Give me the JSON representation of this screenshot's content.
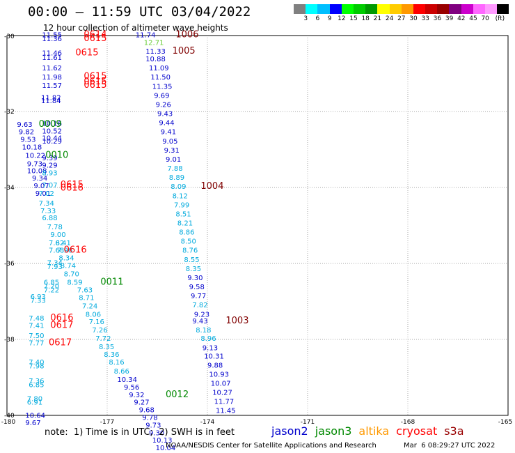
{
  "header": {
    "title": "00:00 — 11:59 UTC 03/04/2022",
    "subtitle": "12 hour collection of altimeter wave heights"
  },
  "color_legend": {
    "colors": [
      "#808080",
      "#00ffff",
      "#00bfff",
      "#0000ff",
      "#00ff00",
      "#00cc00",
      "#009900",
      "#ffff00",
      "#ffcc00",
      "#ff9900",
      "#ff0000",
      "#cc0000",
      "#990000",
      "#800080",
      "#cc00cc",
      "#ff66ff",
      "#ff99ff",
      "#000000"
    ],
    "labels": [
      "3",
      "6",
      "9",
      "12",
      "15",
      "18",
      "21",
      "24",
      "27",
      "30",
      "33",
      "36",
      "39",
      "42",
      "45",
      "70",
      "(ft)"
    ]
  },
  "footer": {
    "note": "note:  1) Time is in UTC;  2) SWH is in feet",
    "credit": "NOAA/NESDIS Center for Satellite Applications and Research",
    "credit_date": "Mar  6 08:29:27 UTC 2022"
  },
  "satellites": [
    {
      "name": "jason2",
      "color": "#0000cc"
    },
    {
      "name": "jason3",
      "color": "#008800"
    },
    {
      "name": "altika",
      "color": "#ff9900"
    },
    {
      "name": "cryosat",
      "color": "#ff0000"
    },
    {
      "name": "s3a",
      "color": "#990000"
    }
  ],
  "chart_data": {
    "type": "scatter",
    "title": "12 hour collection of altimeter wave heights",
    "x_ticks": [
      "-180",
      "-177",
      "-174",
      "-171",
      "-168",
      "-165"
    ],
    "y_ticks": [
      "-30",
      "-32",
      "-34",
      "-36",
      "-38",
      "-40"
    ],
    "xlim": [
      -180,
      -165
    ],
    "ylim": [
      -40,
      -30
    ],
    "grid": true,
    "points": [
      {
        "lon": -178.95,
        "lat": -30.05,
        "v": "11.55",
        "c": "#0000cc"
      },
      {
        "lon": -178.95,
        "lat": -30.15,
        "v": "11.36",
        "c": "#0000cc"
      },
      {
        "lon": -178.95,
        "lat": -30.52,
        "v": "11.46",
        "c": "#0000cc"
      },
      {
        "lon": -178.95,
        "lat": -30.64,
        "v": "11.61",
        "c": "#0000cc"
      },
      {
        "lon": -178.95,
        "lat": -30.92,
        "v": "11.62",
        "c": "#0000cc"
      },
      {
        "lon": -178.95,
        "lat": -31.16,
        "v": "11.98",
        "c": "#0000cc"
      },
      {
        "lon": -178.95,
        "lat": -31.38,
        "v": "11.57",
        "c": "#0000cc"
      },
      {
        "lon": -178.98,
        "lat": -31.7,
        "v": "11.82",
        "c": "#0000cc"
      },
      {
        "lon": -178.98,
        "lat": -31.78,
        "v": "11.84",
        "c": "#0000cc"
      },
      {
        "lon": -176.15,
        "lat": -30.05,
        "v": "11.74",
        "c": "#0000cc"
      },
      {
        "lon": -175.9,
        "lat": -30.25,
        "v": "12.71",
        "c": "#66cc33"
      },
      {
        "lon": -175.85,
        "lat": -30.48,
        "v": "11.33",
        "c": "#0000cc"
      },
      {
        "lon": -175.85,
        "lat": -30.68,
        "v": "10.88",
        "c": "#0000cc"
      },
      {
        "lon": -175.75,
        "lat": -30.92,
        "v": "11.09",
        "c": "#0000cc"
      },
      {
        "lon": -175.7,
        "lat": -31.16,
        "v": "11.50",
        "c": "#0000cc"
      },
      {
        "lon": -175.65,
        "lat": -31.4,
        "v": "11.35",
        "c": "#0000cc"
      },
      {
        "lon": -175.6,
        "lat": -31.64,
        "v": "9.69",
        "c": "#0000cc"
      },
      {
        "lon": -175.55,
        "lat": -31.88,
        "v": "9.26",
        "c": "#0000cc"
      },
      {
        "lon": -175.5,
        "lat": -32.12,
        "v": "9.43",
        "c": "#0000cc"
      },
      {
        "lon": -175.45,
        "lat": -32.36,
        "v": "9.44",
        "c": "#0000cc"
      },
      {
        "lon": -175.4,
        "lat": -32.6,
        "v": "9.41",
        "c": "#0000cc"
      },
      {
        "lon": -175.35,
        "lat": -32.84,
        "v": "9.05",
        "c": "#0000cc"
      },
      {
        "lon": -175.3,
        "lat": -33.08,
        "v": "9.31",
        "c": "#0000cc"
      },
      {
        "lon": -175.25,
        "lat": -33.32,
        "v": "9.01",
        "c": "#0000cc"
      },
      {
        "lon": -175.2,
        "lat": -33.56,
        "v": "7.88",
        "c": "#00aadd"
      },
      {
        "lon": -175.15,
        "lat": -33.8,
        "v": "8.89",
        "c": "#00aadd"
      },
      {
        "lon": -175.1,
        "lat": -34.04,
        "v": "8.09",
        "c": "#00aadd"
      },
      {
        "lon": -175.05,
        "lat": -34.28,
        "v": "8.12",
        "c": "#00aadd"
      },
      {
        "lon": -175.0,
        "lat": -34.52,
        "v": "7.99",
        "c": "#00aadd"
      },
      {
        "lon": -174.95,
        "lat": -34.76,
        "v": "8.51",
        "c": "#00aadd"
      },
      {
        "lon": -174.9,
        "lat": -35.0,
        "v": "8.21",
        "c": "#00aadd"
      },
      {
        "lon": -174.85,
        "lat": -35.24,
        "v": "8.86",
        "c": "#00aadd"
      },
      {
        "lon": -174.8,
        "lat": -35.48,
        "v": "8.50",
        "c": "#00aadd"
      },
      {
        "lon": -174.75,
        "lat": -35.72,
        "v": "8.76",
        "c": "#00aadd"
      },
      {
        "lon": -174.7,
        "lat": -35.96,
        "v": "8.55",
        "c": "#00aadd"
      },
      {
        "lon": -174.65,
        "lat": -36.2,
        "v": "8.35",
        "c": "#00aadd"
      },
      {
        "lon": -174.6,
        "lat": -36.44,
        "v": "9.30",
        "c": "#0000cc"
      },
      {
        "lon": -174.55,
        "lat": -36.68,
        "v": "9.58",
        "c": "#0000cc"
      },
      {
        "lon": -174.5,
        "lat": -36.92,
        "v": "9.77",
        "c": "#0000cc"
      },
      {
        "lon": -174.45,
        "lat": -37.16,
        "v": "7.82",
        "c": "#00aadd"
      },
      {
        "lon": -174.4,
        "lat": -37.4,
        "v": "9.23",
        "c": "#0000cc"
      },
      {
        "lon": -174.45,
        "lat": -37.58,
        "v": "9.43",
        "c": "#0000cc"
      },
      {
        "lon": -174.35,
        "lat": -37.82,
        "v": "8.18",
        "c": "#00aadd"
      },
      {
        "lon": -174.2,
        "lat": -38.04,
        "v": "8.96",
        "c": "#00aadd"
      },
      {
        "lon": -174.15,
        "lat": -38.28,
        "v": "9.13",
        "c": "#0000cc"
      },
      {
        "lon": -174.1,
        "lat": -38.5,
        "v": "10.31",
        "c": "#0000cc"
      },
      {
        "lon": -174.0,
        "lat": -38.74,
        "v": "9.88",
        "c": "#0000cc"
      },
      {
        "lon": -173.95,
        "lat": -38.98,
        "v": "10.93",
        "c": "#0000cc"
      },
      {
        "lon": -173.9,
        "lat": -39.22,
        "v": "10.07",
        "c": "#0000cc"
      },
      {
        "lon": -173.85,
        "lat": -39.46,
        "v": "10.27",
        "c": "#0000cc"
      },
      {
        "lon": -173.8,
        "lat": -39.7,
        "v": "11.77",
        "c": "#0000cc"
      },
      {
        "lon": -173.75,
        "lat": -39.94,
        "v": "11.45",
        "c": "#0000cc"
      },
      {
        "lon": -179.7,
        "lat": -32.4,
        "v": "9.63",
        "c": "#0000cc"
      },
      {
        "lon": -179.65,
        "lat": -32.6,
        "v": "9.82",
        "c": "#0000cc"
      },
      {
        "lon": -179.6,
        "lat": -32.8,
        "v": "9.53",
        "c": "#0000cc"
      },
      {
        "lon": -179.55,
        "lat": -33.0,
        "v": "10.18",
        "c": "#0000cc"
      },
      {
        "lon": -179.45,
        "lat": -33.22,
        "v": "10.22",
        "c": "#0000cc"
      },
      {
        "lon": -179.4,
        "lat": -33.44,
        "v": "9.73",
        "c": "#0000cc"
      },
      {
        "lon": -179.4,
        "lat": -33.62,
        "v": "10.08",
        "c": "#0000cc"
      },
      {
        "lon": -179.25,
        "lat": -33.82,
        "v": "9.34",
        "c": "#0000cc"
      },
      {
        "lon": -179.2,
        "lat": -34.02,
        "v": "9.07",
        "c": "#0000cc"
      },
      {
        "lon": -179.15,
        "lat": -34.22,
        "v": "9.01",
        "c": "#0000cc"
      },
      {
        "lon": -178.95,
        "lat": -32.38,
        "v": "10.16",
        "c": "#0000cc"
      },
      {
        "lon": -178.95,
        "lat": -32.58,
        "v": "10.52",
        "c": "#0000cc"
      },
      {
        "lon": -178.95,
        "lat": -32.76,
        "v": "10.44",
        "c": "#0000cc"
      },
      {
        "lon": -178.95,
        "lat": -32.84,
        "v": "10.29",
        "c": "#0000cc"
      },
      {
        "lon": -178.95,
        "lat": -33.28,
        "v": "9.39",
        "c": "#0000cc"
      },
      {
        "lon": -178.95,
        "lat": -33.48,
        "v": "9.29",
        "c": "#0000cc"
      },
      {
        "lon": -178.95,
        "lat": -33.68,
        "v": "8.93",
        "c": "#00aadd"
      },
      {
        "lon": -178.95,
        "lat": -34.0,
        "v": "7.07",
        "c": "#00aadd"
      },
      {
        "lon": -179.05,
        "lat": -34.22,
        "v": "7.02",
        "c": "#00aadd"
      },
      {
        "lon": -179.05,
        "lat": -34.48,
        "v": "7.34",
        "c": "#00aadd"
      },
      {
        "lon": -179.0,
        "lat": -34.68,
        "v": "7.33",
        "c": "#00aadd"
      },
      {
        "lon": -178.95,
        "lat": -34.86,
        "v": "6.88",
        "c": "#00aadd"
      },
      {
        "lon": -178.8,
        "lat": -35.1,
        "v": "7.78",
        "c": "#00aadd"
      },
      {
        "lon": -178.7,
        "lat": -35.3,
        "v": "9.00",
        "c": "#00aadd"
      },
      {
        "lon": -178.75,
        "lat": -35.52,
        "v": "7.62",
        "c": "#00aadd"
      },
      {
        "lon": -178.55,
        "lat": -35.52,
        "v": "8.41",
        "c": "#00aadd"
      },
      {
        "lon": -178.75,
        "lat": -35.72,
        "v": "7.68",
        "c": "#00aadd"
      },
      {
        "lon": -178.5,
        "lat": -35.72,
        "v": "7.96",
        "c": "#00aadd"
      },
      {
        "lon": -178.45,
        "lat": -35.92,
        "v": "8.34",
        "c": "#00aadd"
      },
      {
        "lon": -178.4,
        "lat": -36.12,
        "v": "8.74",
        "c": "#00aadd"
      },
      {
        "lon": -178.8,
        "lat": -36.05,
        "v": "7.34",
        "c": "#00aadd"
      },
      {
        "lon": -178.8,
        "lat": -36.15,
        "v": "7.93",
        "c": "#00aadd"
      },
      {
        "lon": -178.3,
        "lat": -36.34,
        "v": "8.70",
        "c": "#00aadd"
      },
      {
        "lon": -178.2,
        "lat": -36.56,
        "v": "8.59",
        "c": "#00aadd"
      },
      {
        "lon": -178.9,
        "lat": -36.56,
        "v": "6.85",
        "c": "#00aadd"
      },
      {
        "lon": -178.9,
        "lat": -36.66,
        "v": "7.20",
        "c": "#00aadd"
      },
      {
        "lon": -178.9,
        "lat": -36.76,
        "v": "7.22",
        "c": "#00aadd"
      },
      {
        "lon": -177.9,
        "lat": -36.76,
        "v": "7.63",
        "c": "#00aadd"
      },
      {
        "lon": -177.85,
        "lat": -36.96,
        "v": "8.71",
        "c": "#00aadd"
      },
      {
        "lon": -177.75,
        "lat": -37.18,
        "v": "7.24",
        "c": "#00aadd"
      },
      {
        "lon": -177.65,
        "lat": -37.4,
        "v": "8.06",
        "c": "#00aadd"
      },
      {
        "lon": -177.55,
        "lat": -37.6,
        "v": "7.16",
        "c": "#00aadd"
      },
      {
        "lon": -177.45,
        "lat": -37.82,
        "v": "7.26",
        "c": "#00aadd"
      },
      {
        "lon": -177.35,
        "lat": -38.04,
        "v": "7.72",
        "c": "#00aadd"
      },
      {
        "lon": -177.25,
        "lat": -38.26,
        "v": "8.35",
        "c": "#00aadd"
      },
      {
        "lon": -177.1,
        "lat": -38.46,
        "v": "8.36",
        "c": "#00aadd"
      },
      {
        "lon": -176.95,
        "lat": -38.66,
        "v": "8.16",
        "c": "#00aadd"
      },
      {
        "lon": -176.8,
        "lat": -38.9,
        "v": "8.66",
        "c": "#00aadd"
      },
      {
        "lon": -176.7,
        "lat": -39.12,
        "v": "10.34",
        "c": "#0000cc"
      },
      {
        "lon": -176.5,
        "lat": -39.32,
        "v": "9.56",
        "c": "#0000cc"
      },
      {
        "lon": -176.35,
        "lat": -39.52,
        "v": "9.32",
        "c": "#0000cc"
      },
      {
        "lon": -176.2,
        "lat": -39.72,
        "v": "9.27",
        "c": "#0000cc"
      },
      {
        "lon": -176.05,
        "lat": -39.92,
        "v": "9.68",
        "c": "#0000cc"
      },
      {
        "lon": -175.95,
        "lat": -40.12,
        "v": "9.78",
        "c": "#0000cc"
      },
      {
        "lon": -175.85,
        "lat": -40.32,
        "v": "9.73",
        "c": "#0000cc"
      },
      {
        "lon": -175.75,
        "lat": -40.52,
        "v": "9.30",
        "c": "#0000cc"
      },
      {
        "lon": -175.65,
        "lat": -40.72,
        "v": "10.13",
        "c": "#0000cc"
      },
      {
        "lon": -175.55,
        "lat": -40.92,
        "v": "10.04",
        "c": "#0000cc"
      },
      {
        "lon": -179.3,
        "lat": -36.94,
        "v": "6.93",
        "c": "#00aadd"
      },
      {
        "lon": -179.3,
        "lat": -37.04,
        "v": "7.33",
        "c": "#00aadd"
      },
      {
        "lon": -179.35,
        "lat": -37.5,
        "v": "7.48",
        "c": "#00aadd"
      },
      {
        "lon": -179.35,
        "lat": -37.7,
        "v": "7.41",
        "c": "#00aadd"
      },
      {
        "lon": -179.35,
        "lat": -37.96,
        "v": "7.50",
        "c": "#00aadd"
      },
      {
        "lon": -179.35,
        "lat": -38.16,
        "v": "7.77",
        "c": "#00aadd"
      },
      {
        "lon": -179.35,
        "lat": -38.66,
        "v": "7.40",
        "c": "#00aadd"
      },
      {
        "lon": -179.35,
        "lat": -38.76,
        "v": "7.98",
        "c": "#00aadd"
      },
      {
        "lon": -179.35,
        "lat": -39.16,
        "v": "7.36",
        "c": "#00aadd"
      },
      {
        "lon": -179.35,
        "lat": -39.26,
        "v": "6.85",
        "c": "#00aadd"
      },
      {
        "lon": -179.4,
        "lat": -39.62,
        "v": "7.80",
        "c": "#00aadd"
      },
      {
        "lon": -179.4,
        "lat": -39.72,
        "v": "6.91",
        "c": "#00aadd"
      },
      {
        "lon": -179.45,
        "lat": -40.06,
        "v": "10.64",
        "c": "#0000cc"
      },
      {
        "lon": -179.45,
        "lat": -40.26,
        "v": "9.67",
        "c": "#0000cc"
      }
    ],
    "time_labels": [
      {
        "lon": -177.7,
        "lat": -30.05,
        "t": "0614",
        "c": "#ff0000"
      },
      {
        "lon": -177.7,
        "lat": -30.15,
        "t": "0615",
        "c": "#ff0000"
      },
      {
        "lon": -177.95,
        "lat": -30.52,
        "t": "0615",
        "c": "#ff0000"
      },
      {
        "lon": -177.7,
        "lat": -31.15,
        "t": "0615",
        "c": "#ff0000"
      },
      {
        "lon": -177.7,
        "lat": -31.28,
        "t": "0615",
        "c": "#ff0000"
      },
      {
        "lon": -177.7,
        "lat": -31.38,
        "t": "0615",
        "c": "#ff0000"
      },
      {
        "lon": -174.95,
        "lat": -30.05,
        "t": "1006",
        "c": "#800000"
      },
      {
        "lon": -175.05,
        "lat": -30.48,
        "t": "1005",
        "c": "#800000"
      },
      {
        "lon": -179.05,
        "lat": -32.4,
        "t": "0009",
        "c": "#008800"
      },
      {
        "lon": -178.85,
        "lat": -33.22,
        "t": "0010",
        "c": "#008800"
      },
      {
        "lon": -178.4,
        "lat": -34.0,
        "t": "0615",
        "c": "#ff0000"
      },
      {
        "lon": -178.4,
        "lat": -34.08,
        "t": "0616",
        "c": "#ff0000"
      },
      {
        "lon": -174.2,
        "lat": -34.04,
        "t": "1004",
        "c": "#800000"
      },
      {
        "lon": -178.3,
        "lat": -35.72,
        "t": "0616",
        "c": "#ff0000"
      },
      {
        "lon": -177.2,
        "lat": -36.56,
        "t": "0011",
        "c": "#008800"
      },
      {
        "lon": -178.7,
        "lat": -37.5,
        "t": "0616",
        "c": "#ff0000"
      },
      {
        "lon": -178.7,
        "lat": -37.7,
        "t": "0617",
        "c": "#ff0000"
      },
      {
        "lon": -178.75,
        "lat": -38.16,
        "t": "0617",
        "c": "#ff0000"
      },
      {
        "lon": -175.25,
        "lat": -39.52,
        "t": "0012",
        "c": "#008800"
      },
      {
        "lon": -173.45,
        "lat": -37.58,
        "t": "1003",
        "c": "#800000"
      }
    ]
  }
}
